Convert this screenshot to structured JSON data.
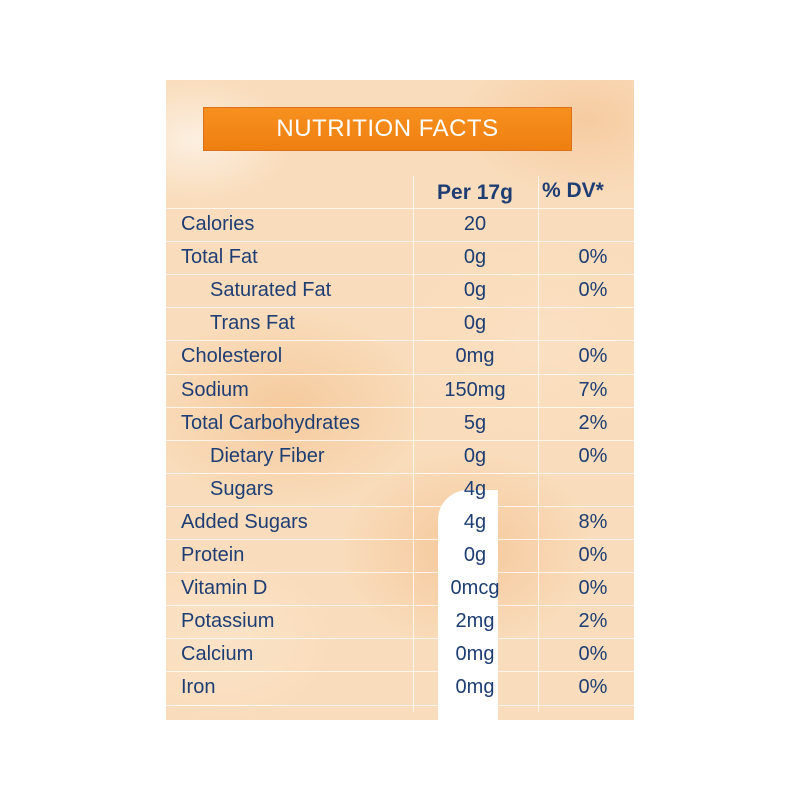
{
  "title": "NUTRITION FACTS",
  "headers": {
    "per": "Per 17g",
    "dv": "% DV*"
  },
  "rows": [
    {
      "label": "Calories",
      "value": "20",
      "dv": ""
    },
    {
      "label": "Total Fat",
      "value": "0g",
      "dv": "0%"
    },
    {
      "label": "Saturated Fat",
      "value": "0g",
      "dv": "0%"
    },
    {
      "label": "Trans Fat",
      "value": "0g",
      "dv": ""
    },
    {
      "label": "Cholesterol",
      "value": "0mg",
      "dv": "0%"
    },
    {
      "label": "Sodium",
      "value": "150mg",
      "dv": "7%"
    },
    {
      "label": "Total Carbohydrates",
      "value": "5g",
      "dv": "2%"
    },
    {
      "label": "Dietary Fiber",
      "value": "0g",
      "dv": "0%"
    },
    {
      "label": "Sugars",
      "value": "4g",
      "dv": ""
    },
    {
      "label": "Added Sugars",
      "value": "4g",
      "dv": "8%"
    },
    {
      "label": "Protein",
      "value": "0g",
      "dv": "0%"
    },
    {
      "label": "Vitamin D",
      "value": "0mcg",
      "dv": "0%"
    },
    {
      "label": "Potassium",
      "value": "2mg",
      "dv": "2%"
    },
    {
      "label": "Calcium",
      "value": "0mg",
      "dv": "0%"
    },
    {
      "label": "Iron",
      "value": "0mg",
      "dv": "0%"
    }
  ]
}
